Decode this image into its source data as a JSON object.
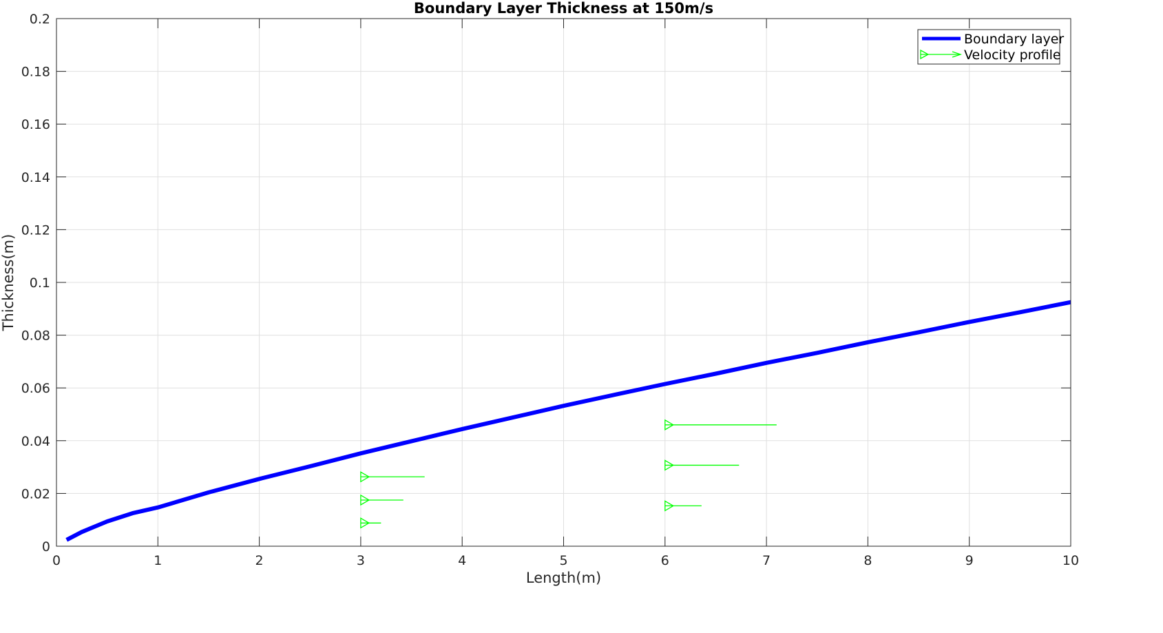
{
  "chart_data": {
    "type": "line",
    "title": "Boundary Layer Thickness at 150m/s",
    "xlabel": "Length(m)",
    "ylabel": "Thickness(m)",
    "xlim": [
      0,
      10
    ],
    "ylim": [
      0,
      0.2
    ],
    "xticks": [
      0,
      1,
      2,
      3,
      4,
      5,
      6,
      7,
      8,
      9,
      10
    ],
    "yticks": [
      0,
      0.02,
      0.04,
      0.06,
      0.08,
      0.1,
      0.12,
      0.14,
      0.16,
      0.18,
      0.2
    ],
    "xtick_labels": [
      "0",
      "1",
      "2",
      "3",
      "4",
      "5",
      "6",
      "7",
      "8",
      "9",
      "10"
    ],
    "ytick_labels": [
      "0",
      "0.02",
      "0.04",
      "0.06",
      "0.08",
      "0.1",
      "0.12",
      "0.14",
      "0.16",
      "0.18",
      "0.2"
    ],
    "grid": true,
    "legend_position": "top-right",
    "series": [
      {
        "name": "Boundary layer",
        "type": "line",
        "color": "#0000ff",
        "x": [
          0.1,
          0.25,
          0.5,
          0.75,
          1,
          1.5,
          2,
          2.5,
          3,
          3.5,
          4,
          4.5,
          5,
          5.5,
          6,
          6.5,
          7,
          7.5,
          8,
          8.5,
          9,
          9.5,
          10
        ],
        "y": [
          0.0024,
          0.0054,
          0.0094,
          0.0125,
          0.0147,
          0.0204,
          0.0255,
          0.0303,
          0.0352,
          0.0398,
          0.0444,
          0.0488,
          0.0532,
          0.0574,
          0.0615,
          0.0654,
          0.0695,
          0.0733,
          0.0773,
          0.0811,
          0.085,
          0.0887,
          0.0925
        ]
      },
      {
        "name": "Velocity profile",
        "type": "quiver",
        "color": "#00ff00",
        "arrows": [
          {
            "x": 3,
            "y": 0.0088,
            "u": 0.2
          },
          {
            "x": 3,
            "y": 0.0175,
            "u": 0.42
          },
          {
            "x": 3,
            "y": 0.0263,
            "u": 0.63
          },
          {
            "x": 6,
            "y": 0.0153,
            "u": 0.36
          },
          {
            "x": 6,
            "y": 0.0307,
            "u": 0.73
          },
          {
            "x": 6,
            "y": 0.046,
            "u": 1.1
          }
        ]
      }
    ]
  }
}
